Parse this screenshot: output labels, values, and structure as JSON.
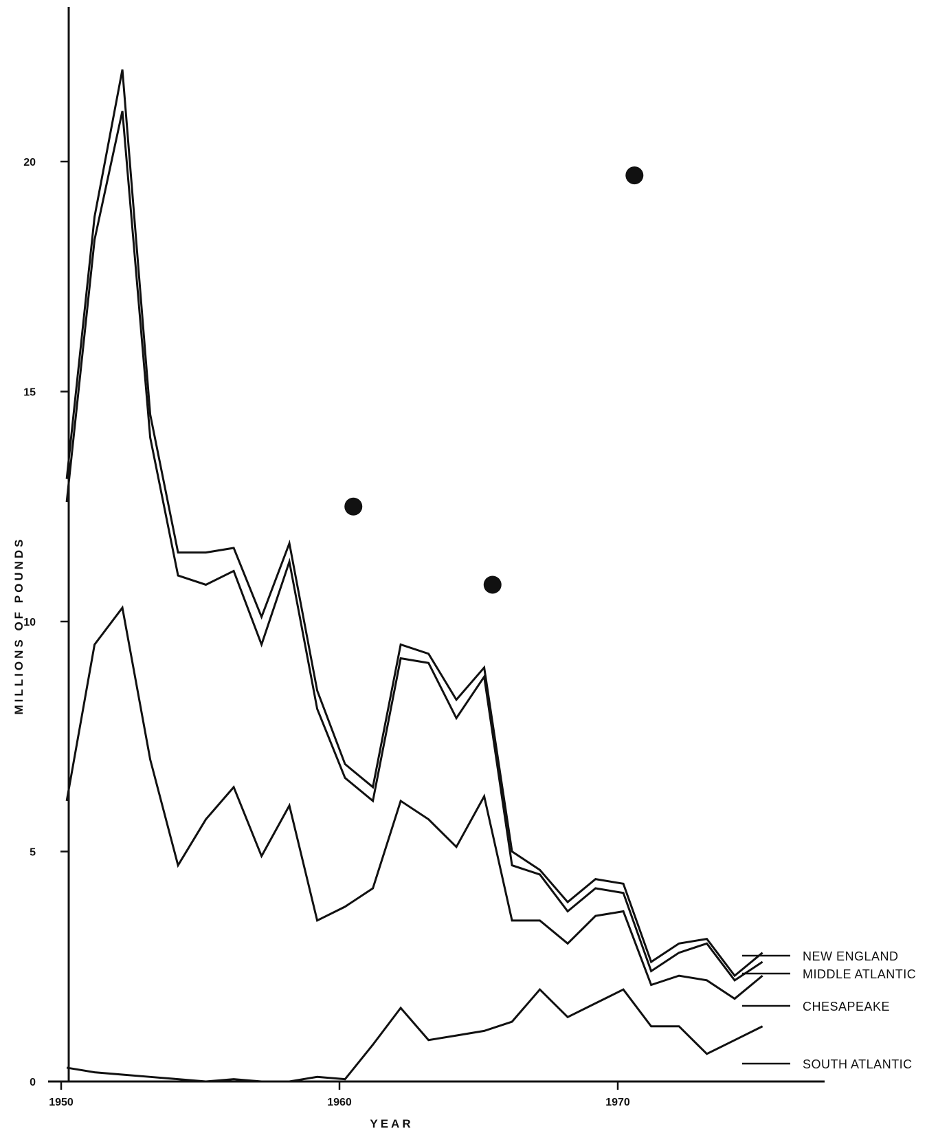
{
  "chart_data": {
    "type": "line",
    "title": "",
    "xlabel": "YEAR",
    "ylabel": "MILLIONS OF POUNDS",
    "xlim": [
      1950,
      1977
    ],
    "ylim": [
      0,
      23.5
    ],
    "x_ticks": [
      1950,
      1960,
      1970
    ],
    "y_ticks": [
      0,
      5,
      10,
      15,
      20
    ],
    "grid": false,
    "legend": "right, labels at line ends",
    "x": [
      1950,
      1951,
      1952,
      1953,
      1954,
      1955,
      1956,
      1957,
      1958,
      1959,
      1960,
      1961,
      1962,
      1963,
      1964,
      1965,
      1966,
      1967,
      1968,
      1969,
      1970,
      1971,
      1972,
      1973,
      1974,
      1975
    ],
    "series": [
      {
        "name": "NEW ENGLAND",
        "values": [
          13.1,
          18.8,
          22.0,
          14.5,
          11.5,
          11.5,
          11.6,
          10.1,
          11.7,
          8.5,
          6.9,
          6.4,
          9.5,
          9.3,
          8.3,
          9.0,
          5.0,
          4.6,
          3.9,
          4.4,
          4.3,
          2.6,
          3.0,
          3.1,
          2.3,
          2.8
        ]
      },
      {
        "name": "MIDDLE ATLANTIC",
        "values": [
          12.6,
          18.3,
          21.1,
          14.0,
          11.0,
          10.8,
          11.1,
          9.5,
          11.3,
          8.1,
          6.6,
          6.1,
          9.2,
          9.1,
          7.9,
          8.8,
          4.7,
          4.5,
          3.7,
          4.2,
          4.1,
          2.4,
          2.8,
          3.0,
          2.2,
          2.6
        ]
      },
      {
        "name": "CHESAPEAKE",
        "values": [
          6.1,
          9.5,
          10.3,
          7.0,
          4.7,
          5.7,
          6.4,
          4.9,
          6.0,
          3.5,
          3.8,
          4.2,
          6.1,
          5.7,
          5.1,
          6.2,
          3.5,
          3.5,
          3.0,
          3.6,
          3.7,
          2.1,
          2.3,
          2.2,
          1.8,
          2.3
        ]
      },
      {
        "name": "SOUTH ATLANTIC",
        "values": [
          0.3,
          0.2,
          0.15,
          0.1,
          0.05,
          0.0,
          0.05,
          0.0,
          0.0,
          0.1,
          0.05,
          0.8,
          1.6,
          0.9,
          1.0,
          1.1,
          1.3,
          2.0,
          1.4,
          1.7,
          2.0,
          1.2,
          1.2,
          0.6,
          0.9,
          1.2
        ]
      }
    ],
    "markers": [
      {
        "x": 1960.5,
        "y": 12.5
      },
      {
        "x": 1965.5,
        "y": 10.8
      },
      {
        "x": 1970.6,
        "y": 19.7
      }
    ]
  }
}
